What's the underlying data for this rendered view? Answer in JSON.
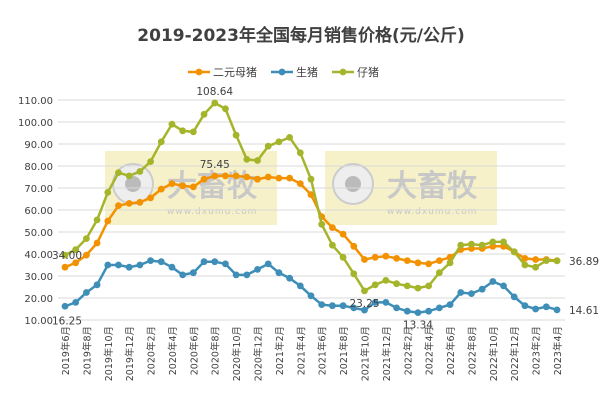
{
  "chart_data": {
    "type": "line",
    "title": "2019-2023年全国每月销售价格(元/公斤)",
    "legend_position": "top",
    "grid": true,
    "ylim": [
      10,
      110
    ],
    "yticks": [
      "10.00",
      "20.00",
      "30.00",
      "40.00",
      "50.00",
      "60.00",
      "70.00",
      "80.00",
      "90.00",
      "100.00",
      "110.00"
    ],
    "x": [
      "2019年6月",
      "2019年7月",
      "2019年8月",
      "2019年9月",
      "2019年10月",
      "2019年11月",
      "2019年12月",
      "2020年1月",
      "2020年2月",
      "2020年3月",
      "2020年4月",
      "2020年5月",
      "2020年6月",
      "2020年7月",
      "2020年8月",
      "2020年9月",
      "2020年10月",
      "2020年11月",
      "2020年12月",
      "2021年1月",
      "2021年2月",
      "2021年3月",
      "2021年4月",
      "2021年5月",
      "2021年6月",
      "2021年7月",
      "2021年8月",
      "2021年9月",
      "2021年10月",
      "2021年11月",
      "2021年12月",
      "2022年1月",
      "2022年2月",
      "2022年3月",
      "2022年4月",
      "2022年5月",
      "2022年6月",
      "2022年7月",
      "2022年8月",
      "2022年9月",
      "2022年10月",
      "2022年11月",
      "2022年12月",
      "2023年1月",
      "2023年2月",
      "2023年3月",
      "2023年4月"
    ],
    "series": [
      {
        "name": "二元母猪",
        "color": "#F39200",
        "values": [
          34.0,
          36,
          39.5,
          45,
          55,
          62,
          63,
          63.5,
          65.5,
          69.5,
          72,
          71,
          70.5,
          74,
          75.45,
          75.5,
          75.5,
          75,
          74,
          75,
          74.5,
          74.5,
          72,
          67,
          57,
          52,
          49,
          43.5,
          37.5,
          38.5,
          39,
          38,
          37,
          36,
          35.5,
          37,
          38.5,
          42,
          42.5,
          42.5,
          43.5,
          43.5,
          41,
          38,
          37.5,
          37.5,
          37
        ],
        "labels": [
          {
            "index": 0,
            "text": "34.00"
          },
          {
            "index": 14,
            "text": "75.45"
          }
        ]
      },
      {
        "name": "生猪",
        "color": "#3E8EB7",
        "values": [
          16.25,
          18,
          22.5,
          26,
          35,
          35,
          34,
          35,
          37,
          36.5,
          34,
          30.5,
          31.5,
          36.5,
          36.5,
          35.5,
          30.5,
          30.5,
          33,
          35.5,
          31.5,
          29,
          25.5,
          21,
          17,
          16.5,
          16.5,
          15.5,
          14.5,
          18,
          18,
          15.5,
          14,
          13.34,
          14,
          15.5,
          17,
          22.5,
          22,
          24,
          27.5,
          25.5,
          20.5,
          16.5,
          15,
          16,
          14.61
        ],
        "labels": [
          {
            "index": 0,
            "text": "16.25"
          },
          {
            "index": 33,
            "text": "13.34"
          },
          {
            "index": 46,
            "text": "14.61"
          }
        ]
      },
      {
        "name": "仔猪",
        "color": "#A5B52B",
        "values": [
          39.5,
          42,
          47,
          55.5,
          68,
          77,
          75.5,
          77.5,
          82,
          91,
          99,
          96,
          95.5,
          103.5,
          108.64,
          106,
          94,
          83,
          82.5,
          89,
          91,
          93,
          86,
          74,
          53.5,
          44,
          38.5,
          31,
          23.25,
          26,
          28,
          26.5,
          25.5,
          24.5,
          25.5,
          31.5,
          36,
          44,
          44.5,
          44,
          45.5,
          45.5,
          41,
          35,
          34,
          37,
          36.89
        ],
        "labels": [
          {
            "index": 14,
            "text": "108.64"
          },
          {
            "index": 28,
            "text": "23.25"
          },
          {
            "index": 46,
            "text": "36.89"
          }
        ]
      }
    ]
  },
  "watermark": {
    "brand": "大畜牧",
    "url": "www.dxumu.com"
  }
}
